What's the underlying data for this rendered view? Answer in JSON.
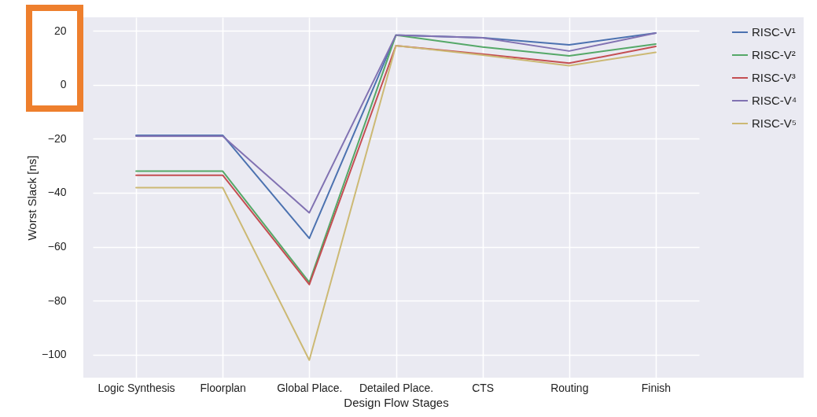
{
  "chart_data": {
    "type": "line",
    "xlabel": "Design Flow Stages",
    "ylabel": "Worst Slack [ns]",
    "categories": [
      "Logic Synthesis",
      "Floorplan",
      "Global Place.",
      "Detailed Place.",
      "CTS",
      "Routing",
      "Finish"
    ],
    "ylim": [
      -108.5,
      25
    ],
    "yticks": [
      -100,
      -80,
      -60,
      -40,
      -20,
      0,
      20
    ],
    "grid": true,
    "legend": "top right",
    "line_style": "solid",
    "marker": "none",
    "series": [
      {
        "name": "RISC-V¹",
        "color": "#4c72b0",
        "values": [
          -18.7,
          -18.7,
          -56.9,
          18.4,
          17.4,
          14.8,
          19.2
        ]
      },
      {
        "name": "RISC-V²",
        "color": "#55a868",
        "values": [
          -32,
          -32,
          -73.2,
          18.4,
          14,
          10.7,
          15.1
        ]
      },
      {
        "name": "RISC-V³",
        "color": "#c44e52",
        "values": [
          -33.5,
          -33.5,
          -74,
          14.5,
          11.4,
          8,
          14.2
        ]
      },
      {
        "name": "RISC-V⁴",
        "color": "#8172b2",
        "values": [
          -19,
          -19,
          -47.4,
          18.4,
          17.4,
          12.5,
          19.2
        ]
      },
      {
        "name": "RISC-V⁵",
        "color": "#ccb974",
        "values": [
          -38.1,
          -38.1,
          -102,
          14.5,
          11,
          7.1,
          12
        ]
      }
    ]
  }
}
